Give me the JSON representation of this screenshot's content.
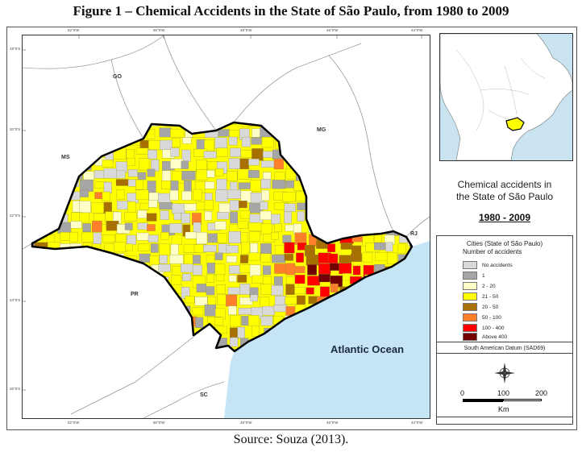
{
  "title": "Figure 1 – Chemical Accidents in the State of São Paulo, from 1980 to 2009",
  "source": "Source: Souza (2013).",
  "map": {
    "state_labels": {
      "go": "GO",
      "mg": "MG",
      "ms": "MS",
      "pr": "PR",
      "rj": "RJ",
      "sc": "SC"
    },
    "ocean_label": "Atlantic Ocean",
    "top_coords": [
      "52°0'W",
      "50°0'W",
      "48°0'W",
      "46°0'W",
      "44°0'W"
    ],
    "left_coords": [
      "19°0'S",
      "20°0'S",
      "22°0'S",
      "24°0'S",
      "26°0'S"
    ]
  },
  "legend": {
    "heading": "Chemical accidents in the State of São Paulo",
    "heading_line1": "Chemical accidents in",
    "heading_line2": "the State of São Paulo",
    "period": "1980 - 2009",
    "box_title": "Cities (State of São Paulo)",
    "box_subtitle": "Number of accidents",
    "categories": [
      {
        "label": "No accidents",
        "color": "#d9d9d9"
      },
      {
        "label": "1",
        "color": "#a6a6a6"
      },
      {
        "label": "2 - 20",
        "color": "#ffffc8"
      },
      {
        "label": "21 - 50",
        "color": "#ffff00"
      },
      {
        "label": "20 - 50",
        "color": "#a87000"
      },
      {
        "label": "50 - 100",
        "color": "#ff7f2a"
      },
      {
        "label": "100 - 400",
        "color": "#ff0000"
      },
      {
        "label": "Above 400",
        "color": "#730000"
      }
    ],
    "datum": "South American Datum (SAD69)",
    "scale": {
      "ticks": [
        "0",
        "100",
        "200"
      ],
      "unit": "Km"
    }
  },
  "colors": {
    "ocean": "#c5e5f7",
    "land_neighbors": "#ffffff",
    "state_border": "#000000"
  }
}
